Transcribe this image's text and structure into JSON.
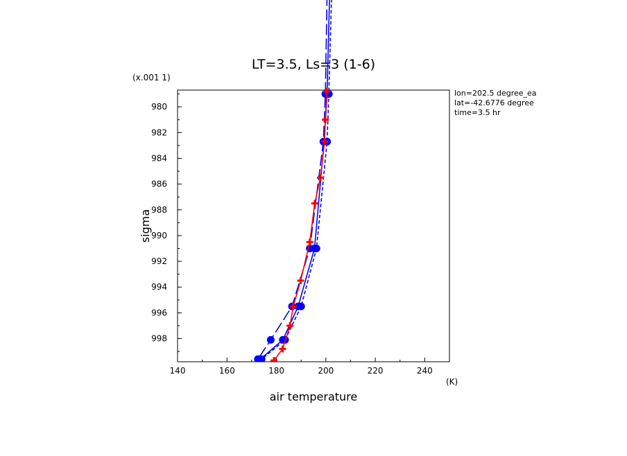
{
  "chart_data": {
    "type": "line",
    "title": "LT=3.5, Ls=3 (1-6)",
    "xlabel": "air temperature",
    "ylabel": "sigma",
    "x_units": "(K)",
    "y_scale_label": "(x.001 1)",
    "xlim": [
      140,
      250
    ],
    "ylim": [
      999.8,
      978.7
    ],
    "x_ticks": [
      140,
      160,
      180,
      200,
      220,
      240
    ],
    "x_tick_labels": [
      "140",
      "160",
      "180",
      "200",
      "220",
      "240"
    ],
    "y_ticks": [
      980,
      982,
      984,
      986,
      988,
      990,
      992,
      994,
      996,
      998
    ],
    "y_tick_labels": [
      "980",
      "982",
      "984",
      "986",
      "988",
      "990",
      "992",
      "994",
      "996",
      "998"
    ],
    "annotations": [
      "lon=202.5 degree_ea",
      "lat=-42.6776 degree",
      "time=3.5 hr"
    ],
    "colors": {
      "blue": "#0000ff",
      "red": "#ff0000",
      "axis": "#000000"
    },
    "series": [
      {
        "color": "#0000ff",
        "dash": "solid",
        "marker": "circle",
        "x": [
          203,
          200.5,
          199.3,
          195.4,
          188.8,
          182.6,
          173.5
        ],
        "y": [
          960,
          979,
          982.7,
          991.0,
          995.5,
          998.1,
          999.6
        ]
      },
      {
        "color": "#0000ff",
        "dash": "long",
        "marker": "circle",
        "x": [
          201.5,
          199.8,
          199,
          193.5,
          186.3,
          177.7,
          172.5
        ],
        "y": [
          960,
          979,
          982.7,
          991.0,
          995.5,
          998.1,
          999.6
        ]
      },
      {
        "color": "#0000ff",
        "dash": "short",
        "marker": "circle",
        "x": [
          204,
          201.2,
          200.5,
          196.2,
          190,
          183.5,
          174
        ],
        "y": [
          960,
          979,
          982.7,
          991.0,
          995.5,
          998.1,
          999.6
        ]
      },
      {
        "color": "#ff0000",
        "dash": "solid",
        "marker": "plus",
        "x": [
          200.3,
          199.8,
          199.5,
          197.8,
          195.5,
          193.5,
          189.8,
          186.8,
          185.5,
          182.5,
          179
        ],
        "y": [
          978.8,
          981.0,
          982.7,
          985.5,
          987.5,
          990.5,
          993.5,
          995.5,
          997.0,
          998.8,
          999.7
        ]
      }
    ]
  }
}
